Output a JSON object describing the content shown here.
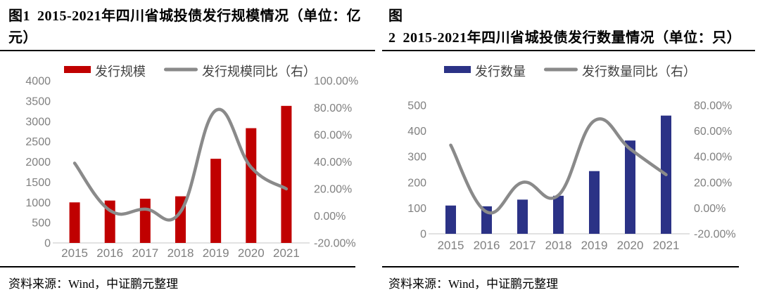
{
  "panels": [
    {
      "fig_label": "图1",
      "title": "2015-2021年四川省城投债发行规模情况（单位：亿元）",
      "source": "资料来源：Wind，中证鹏元整理"
    },
    {
      "fig_label": "图2",
      "title": "2015-2021年四川省城投债发行数量情况（单位：只）",
      "source": "资料来源：Wind，中证鹏元整理"
    }
  ],
  "colors": {
    "bar_red": "#C00000",
    "bar_blue": "#2B3286",
    "line_gray": "#8A8A8A",
    "axis_text": "#808080",
    "legend_text": "#404040",
    "axis_line": "#D9D9D9"
  },
  "chart_data": [
    {
      "type": "bar+line",
      "title": "2015-2021年四川省城投债发行规模情况（单位：亿元）",
      "categories": [
        "2015",
        "2016",
        "2017",
        "2018",
        "2019",
        "2020",
        "2021"
      ],
      "series": [
        {
          "name": "发行规模",
          "type": "bar",
          "axis": "left",
          "color": "#C00000",
          "values": [
            1000,
            1045,
            1090,
            1150,
            2075,
            2830,
            3380
          ]
        },
        {
          "name": "发行规模同比（右）",
          "type": "line",
          "axis": "right",
          "color": "#8A8A8A",
          "values": [
            39,
            4,
            5,
            3,
            78,
            36,
            20
          ]
        }
      ],
      "left_axis": {
        "min": 0,
        "max": 4000,
        "step": 500,
        "tick_labels": [
          "4000",
          "3500",
          "3000",
          "2500",
          "2000",
          "1500",
          "1000",
          "500",
          "0"
        ]
      },
      "right_axis": {
        "min": -20,
        "max": 100,
        "step": 20,
        "tick_labels": [
          "100.00%",
          "80.00%",
          "60.00%",
          "40.00%",
          "20.00%",
          "0.00%",
          "-20.00%"
        ]
      },
      "legend_position": "top",
      "grid": false
    },
    {
      "type": "bar+line",
      "title": "2015-2021年四川省城投债发行数量情况（单位：只）",
      "categories": [
        "2015",
        "2016",
        "2017",
        "2018",
        "2019",
        "2020",
        "2021"
      ],
      "series": [
        {
          "name": "发行数量",
          "type": "bar",
          "axis": "left",
          "color": "#2B3286",
          "values": [
            110,
            107,
            133,
            148,
            244,
            363,
            460
          ]
        },
        {
          "name": "发行数量同比（右）",
          "type": "line",
          "axis": "right",
          "color": "#8A8A8A",
          "values": [
            49,
            -3,
            20,
            10,
            68,
            46,
            26
          ]
        }
      ],
      "left_axis": {
        "min": 0,
        "max": 500,
        "step": 100,
        "tick_labels": [
          "500",
          "400",
          "300",
          "200",
          "100",
          "0"
        ]
      },
      "right_axis": {
        "min": -20,
        "max": 80,
        "step": 20,
        "tick_labels": [
          "80.00%",
          "60.00%",
          "40.00%",
          "20.00%",
          "0.00%",
          "-20.00%"
        ]
      },
      "legend_position": "top",
      "grid": false
    }
  ]
}
